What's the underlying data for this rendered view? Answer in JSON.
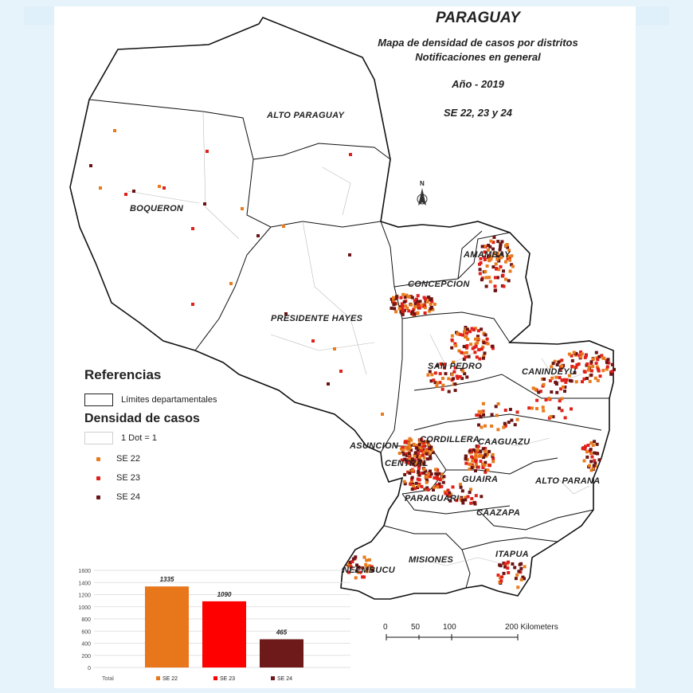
{
  "title": {
    "country": "PARAGUAY",
    "line1": "Mapa de densidad de casos por distritos",
    "line2": "Notificaciones en general",
    "year": "Año - 2019",
    "weeks": "SE 22, 23 y 24"
  },
  "departments": [
    "ALTO PARAGUAY",
    "BOQUERON",
    "PRESIDENTE HAYES",
    "CONCEPCION",
    "AMAMBAY",
    "SAN PEDRO",
    "CANINDEYU",
    "ASUNCION",
    "CORDILLERA",
    "CAAGUAZU",
    "CENTRAL",
    "GUAIRA",
    "ALTO PARANA",
    "PARAGUARI",
    "CAAZAPA",
    "MISIONES",
    "ÑEEMBUCU",
    "ITAPUA"
  ],
  "north_arrow": "N",
  "legend": {
    "title": "Referencias",
    "boundary_label": "Límites departamentales",
    "density_title": "Densidad de casos",
    "dot_label": "1 Dot = 1",
    "series": [
      {
        "label": "SE 22",
        "color": "#e87b1c"
      },
      {
        "label": "SE 23",
        "color": "#e0201a"
      },
      {
        "label": "SE 24",
        "color": "#6b1414"
      }
    ]
  },
  "scale_bar": {
    "labels": [
      "0",
      "50",
      "100",
      "200 Kilometers"
    ]
  },
  "chart_data": {
    "type": "bar",
    "categories": [
      "SE 22",
      "SE 23",
      "SE 24"
    ],
    "values": [
      1335,
      1090,
      465
    ],
    "colors": [
      "#e8761b",
      "#ff0000",
      "#6e1a1a"
    ],
    "ylim": [
      0,
      1600
    ],
    "yticks": [
      0,
      200,
      400,
      600,
      800,
      1000,
      1200,
      1400,
      1600
    ],
    "xlabel": "Total",
    "legend_position": "bottom"
  }
}
